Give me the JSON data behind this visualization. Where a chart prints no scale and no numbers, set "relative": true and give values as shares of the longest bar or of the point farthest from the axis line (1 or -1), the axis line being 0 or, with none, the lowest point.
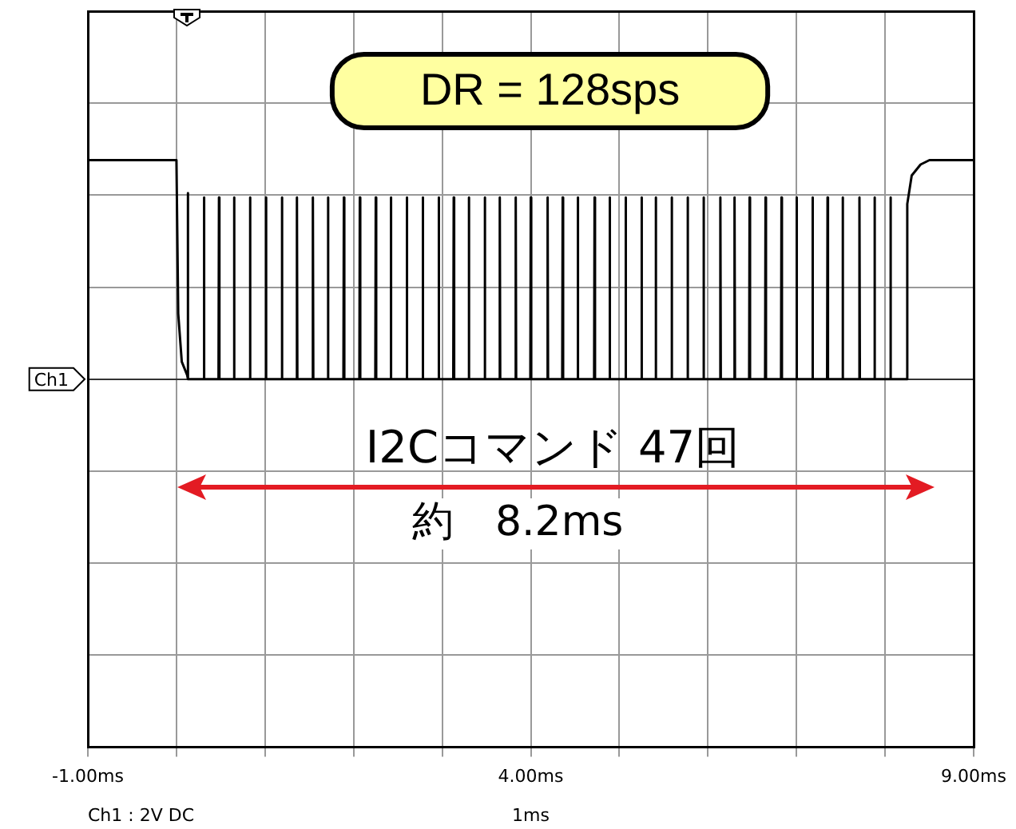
{
  "chart_data": {
    "type": "line",
    "relative": true,
    "grid": true,
    "legend": false,
    "marker": "none",
    "line_style": "solid",
    "x": [
      -1,
      0,
      0.02,
      0.06,
      0.12,
      0.125,
      0.13,
      0.135,
      0.305,
      0.31,
      0.315,
      0.475,
      0.48,
      0.485,
      0.645,
      0.65,
      0.655,
      0.825,
      0.83,
      0.835,
      1.005,
      1.01,
      1.015,
      1.185,
      1.19,
      1.195,
      1.355,
      1.36,
      1.365,
      1.535,
      1.54,
      1.545,
      1.705,
      1.71,
      1.715,
      1.885,
      1.89,
      1.895,
      2.065,
      2.07,
      2.075,
      2.245,
      2.25,
      2.255,
      2.415,
      2.42,
      2.425,
      2.595,
      2.6,
      2.605,
      2.775,
      2.78,
      2.785,
      2.955,
      2.96,
      2.965,
      3.125,
      3.13,
      3.135,
      3.295,
      3.3,
      3.305,
      3.475,
      3.48,
      3.485,
      3.645,
      3.65,
      3.655,
      3.825,
      3.83,
      3.835,
      3.995,
      4,
      4.005,
      4.185,
      4.19,
      4.195,
      4.355,
      4.36,
      4.365,
      4.525,
      4.53,
      4.535,
      4.715,
      4.72,
      4.725,
      4.885,
      4.89,
      4.895,
      5.065,
      5.07,
      5.075,
      5.245,
      5.25,
      5.255,
      5.405,
      5.41,
      5.415,
      5.585,
      5.59,
      5.595,
      5.765,
      5.77,
      5.775,
      5.945,
      5.95,
      5.955,
      6.135,
      6.14,
      6.145,
      6.295,
      6.3,
      6.305,
      6.465,
      6.47,
      6.475,
      6.645,
      6.65,
      6.655,
      6.825,
      6.83,
      6.835,
      6.995,
      7,
      7.005,
      7.175,
      7.18,
      7.185,
      7.345,
      7.35,
      7.355,
      7.515,
      7.52,
      7.525,
      7.705,
      7.71,
      7.715,
      7.875,
      7.88,
      7.885,
      8.055,
      8.06,
      8.065,
      8.24,
      8.25,
      8.3,
      8.4,
      8.5,
      9
    ],
    "series": [
      {
        "color": "#000000",
        "values": [
          1,
          1,
          0.3,
          0.08,
          0.02,
          0,
          0.85,
          0,
          0,
          0.83,
          0,
          0,
          0.83,
          0,
          0,
          0.83,
          0,
          0,
          0.83,
          0,
          0,
          0.83,
          0,
          0,
          0.83,
          0,
          0,
          0.83,
          0,
          0,
          0.83,
          0,
          0,
          0.83,
          0,
          0,
          0.83,
          0,
          0,
          0.83,
          0,
          0,
          0.83,
          0,
          0,
          0.83,
          0,
          0,
          0.83,
          0,
          0,
          0.83,
          0,
          0,
          0.83,
          0,
          0,
          0.83,
          0,
          0,
          0.83,
          0,
          0,
          0.83,
          0,
          0,
          0.83,
          0,
          0,
          0.83,
          0,
          0,
          0.83,
          0,
          0,
          0.83,
          0,
          0,
          0.83,
          0,
          0,
          0.83,
          0,
          0,
          0.83,
          0,
          0,
          0.83,
          0,
          0,
          0.83,
          0,
          0,
          0.83,
          0,
          0,
          0.83,
          0,
          0,
          0.83,
          0,
          0,
          0.83,
          0,
          0,
          0.83,
          0,
          0,
          0.83,
          0,
          0,
          0.83,
          0,
          0,
          0.83,
          0,
          0,
          0.83,
          0,
          0,
          0.83,
          0,
          0,
          0.83,
          0,
          0,
          0.83,
          0,
          0,
          0.83,
          0,
          0,
          0.83,
          0,
          0,
          0.83,
          0,
          0,
          0.83,
          0,
          0,
          0.83,
          0,
          0,
          0.8,
          0.93,
          0.98,
          1,
          1
        ]
      }
    ],
    "xlim": [
      -1,
      9
    ],
    "xticks": [
      {
        "value": -1,
        "label": "-1.00ms"
      },
      {
        "value": 0,
        "label": null
      },
      {
        "value": 1,
        "label": null
      },
      {
        "value": 2,
        "label": null
      },
      {
        "value": 3,
        "label": null
      },
      {
        "value": 4,
        "label": "4.00ms"
      },
      {
        "value": 5,
        "label": null
      },
      {
        "value": 6,
        "label": null
      },
      {
        "value": 7,
        "label": null
      },
      {
        "value": 8,
        "label": null
      },
      {
        "value": 9,
        "label": "9.00ms"
      }
    ],
    "annotations": [
      "DR = 128sps",
      "I2Cコマンド 47回",
      "約　8.2ms",
      "Ch1",
      "Ch1 : 2V DC",
      "1ms"
    ]
  }
}
